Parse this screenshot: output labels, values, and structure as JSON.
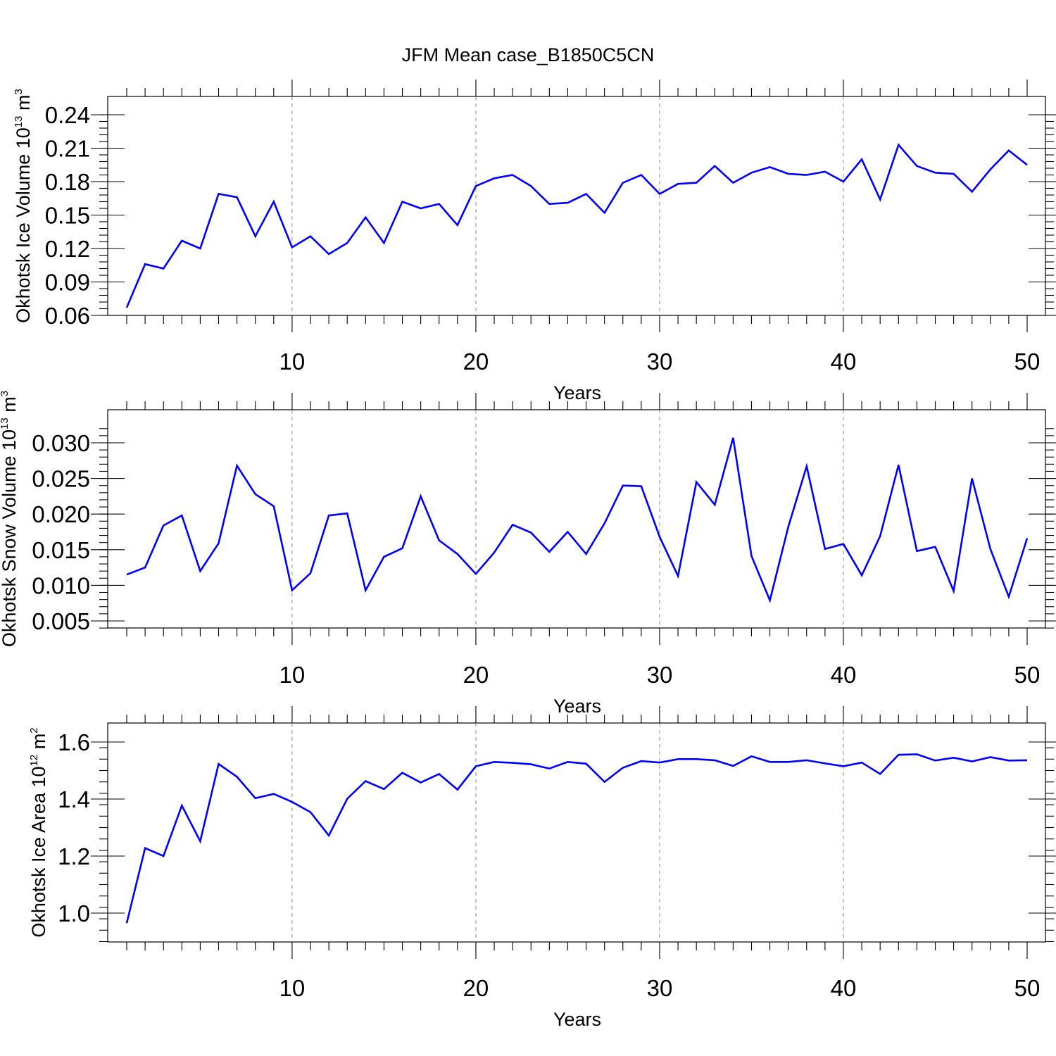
{
  "figure": {
    "title": "JFM Mean case_B1850C5CN"
  },
  "colors": {
    "series": "#0000ff",
    "grid": "#8a8a8a",
    "axis": "#000000"
  },
  "chart_data": [
    {
      "type": "line",
      "title": "",
      "xlabel": "Years",
      "ylabel": {
        "main": "Okhotsk Ice Volume 10",
        "sup": "13",
        "unit": " m",
        "unit_sup": "3"
      },
      "xlim": [
        1,
        50
      ],
      "ylim": [
        0.06,
        0.24
      ],
      "x_major_ticks": [
        10,
        20,
        30,
        40,
        50
      ],
      "x_tick_labels": [
        "10",
        "20",
        "30",
        "40",
        "50"
      ],
      "y_major_ticks": [
        0.06,
        0.09,
        0.12,
        0.15,
        0.18,
        0.21,
        0.24
      ],
      "y_tick_labels": [
        "0.06",
        "0.09",
        "0.12",
        "0.15",
        "0.18",
        "0.21",
        "0.24"
      ],
      "y_minor_step": 0.006,
      "x_gridlines": [
        10,
        20,
        30,
        40
      ],
      "grid": "vertical dashed",
      "series": [
        {
          "x": [
            1,
            2,
            3,
            4,
            5,
            6,
            7,
            8,
            9,
            10,
            11,
            12,
            13,
            14,
            15,
            16,
            17,
            18,
            19,
            20,
            21,
            22,
            23,
            24,
            25,
            26,
            27,
            28,
            29,
            30,
            31,
            32,
            33,
            34,
            35,
            36,
            37,
            38,
            39,
            40,
            41,
            42,
            43,
            44,
            45,
            46,
            47,
            48,
            49,
            50
          ],
          "values": [
            0.067,
            0.106,
            0.102,
            0.127,
            0.12,
            0.169,
            0.166,
            0.131,
            0.162,
            0.121,
            0.131,
            0.115,
            0.125,
            0.148,
            0.125,
            0.162,
            0.156,
            0.16,
            0.141,
            0.176,
            0.183,
            0.186,
            0.176,
            0.16,
            0.161,
            0.169,
            0.152,
            0.179,
            0.186,
            0.169,
            0.178,
            0.179,
            0.194,
            0.179,
            0.188,
            0.193,
            0.187,
            0.186,
            0.189,
            0.18,
            0.2,
            0.164,
            0.213,
            0.194,
            0.188,
            0.187,
            0.171,
            0.191,
            0.208,
            0.195
          ]
        }
      ]
    },
    {
      "type": "line",
      "title": "",
      "xlabel": "Years",
      "ylabel": {
        "main": "Okhotsk Snow Volume 10",
        "sup": "13",
        "unit": " m",
        "unit_sup": "3"
      },
      "xlim": [
        1,
        50
      ],
      "ylim": [
        0.004,
        0.032
      ],
      "x_major_ticks": [
        10,
        20,
        30,
        40,
        50
      ],
      "x_tick_labels": [
        "10",
        "20",
        "30",
        "40",
        "50"
      ],
      "y_major_ticks": [
        0.005,
        0.01,
        0.015,
        0.02,
        0.025,
        0.03
      ],
      "y_tick_labels": [
        "0.005",
        "0.010",
        "0.015",
        "0.020",
        "0.025",
        "0.030"
      ],
      "y_minor_step": 0.001,
      "x_gridlines": [
        10,
        20,
        30,
        40
      ],
      "grid": "vertical dashed",
      "series": [
        {
          "x": [
            1,
            2,
            3,
            4,
            5,
            6,
            7,
            8,
            9,
            10,
            11,
            12,
            13,
            14,
            15,
            16,
            17,
            18,
            19,
            20,
            21,
            22,
            23,
            24,
            25,
            26,
            27,
            28,
            29,
            30,
            31,
            32,
            33,
            34,
            35,
            36,
            37,
            38,
            39,
            40,
            41,
            42,
            43,
            44,
            45,
            46,
            47,
            48,
            49,
            50
          ],
          "values": [
            0.0115,
            0.0125,
            0.0184,
            0.0198,
            0.012,
            0.0159,
            0.0268,
            0.0228,
            0.0211,
            0.0093,
            0.0117,
            0.0198,
            0.0201,
            0.0093,
            0.014,
            0.0152,
            0.0225,
            0.0163,
            0.0144,
            0.0116,
            0.0146,
            0.0185,
            0.0174,
            0.0147,
            0.0175,
            0.0144,
            0.0187,
            0.024,
            0.0239,
            0.0168,
            0.0113,
            0.0245,
            0.0213,
            0.0307,
            0.0141,
            0.0079,
            0.0182,
            0.0267,
            0.0151,
            0.0158,
            0.0114,
            0.0169,
            0.0269,
            0.0148,
            0.0154,
            0.0092,
            0.025,
            0.0151,
            0.0084,
            0.0166
          ]
        }
      ]
    },
    {
      "type": "line",
      "title": "",
      "xlabel": "Years",
      "ylabel": {
        "main": "Okhotsk Ice Area 10",
        "sup": "12",
        "unit": " m",
        "unit_sup": "2"
      },
      "xlim": [
        1,
        50
      ],
      "ylim": [
        0.9,
        1.6
      ],
      "x_major_ticks": [
        10,
        20,
        30,
        40,
        50
      ],
      "x_tick_labels": [
        "10",
        "20",
        "30",
        "40",
        "50"
      ],
      "y_major_ticks": [
        1.0,
        1.2,
        1.4,
        1.6
      ],
      "y_tick_labels": [
        "1.0",
        "1.2",
        "1.4",
        "1.6"
      ],
      "y_minor_step": 0.04,
      "x_gridlines": [
        10,
        20,
        30,
        40
      ],
      "grid": "vertical dashed",
      "series": [
        {
          "x": [
            1,
            2,
            3,
            4,
            5,
            6,
            7,
            8,
            9,
            10,
            11,
            12,
            13,
            14,
            15,
            16,
            17,
            18,
            19,
            20,
            21,
            22,
            23,
            24,
            25,
            26,
            27,
            28,
            29,
            30,
            31,
            32,
            33,
            34,
            35,
            36,
            37,
            38,
            39,
            40,
            41,
            42,
            43,
            44,
            45,
            46,
            47,
            48,
            49,
            50
          ],
          "values": [
            0.965,
            1.228,
            1.2,
            1.377,
            1.252,
            1.523,
            1.478,
            1.403,
            1.418,
            1.39,
            1.354,
            1.272,
            1.401,
            1.463,
            1.435,
            1.492,
            1.458,
            1.488,
            1.433,
            1.515,
            1.53,
            1.527,
            1.522,
            1.507,
            1.53,
            1.524,
            1.46,
            1.51,
            1.533,
            1.528,
            1.54,
            1.54,
            1.536,
            1.516,
            1.55,
            1.53,
            1.53,
            1.536,
            1.525,
            1.515,
            1.528,
            1.488,
            1.555,
            1.557,
            1.535,
            1.545,
            1.532,
            1.547,
            1.535,
            1.536
          ]
        }
      ]
    }
  ]
}
